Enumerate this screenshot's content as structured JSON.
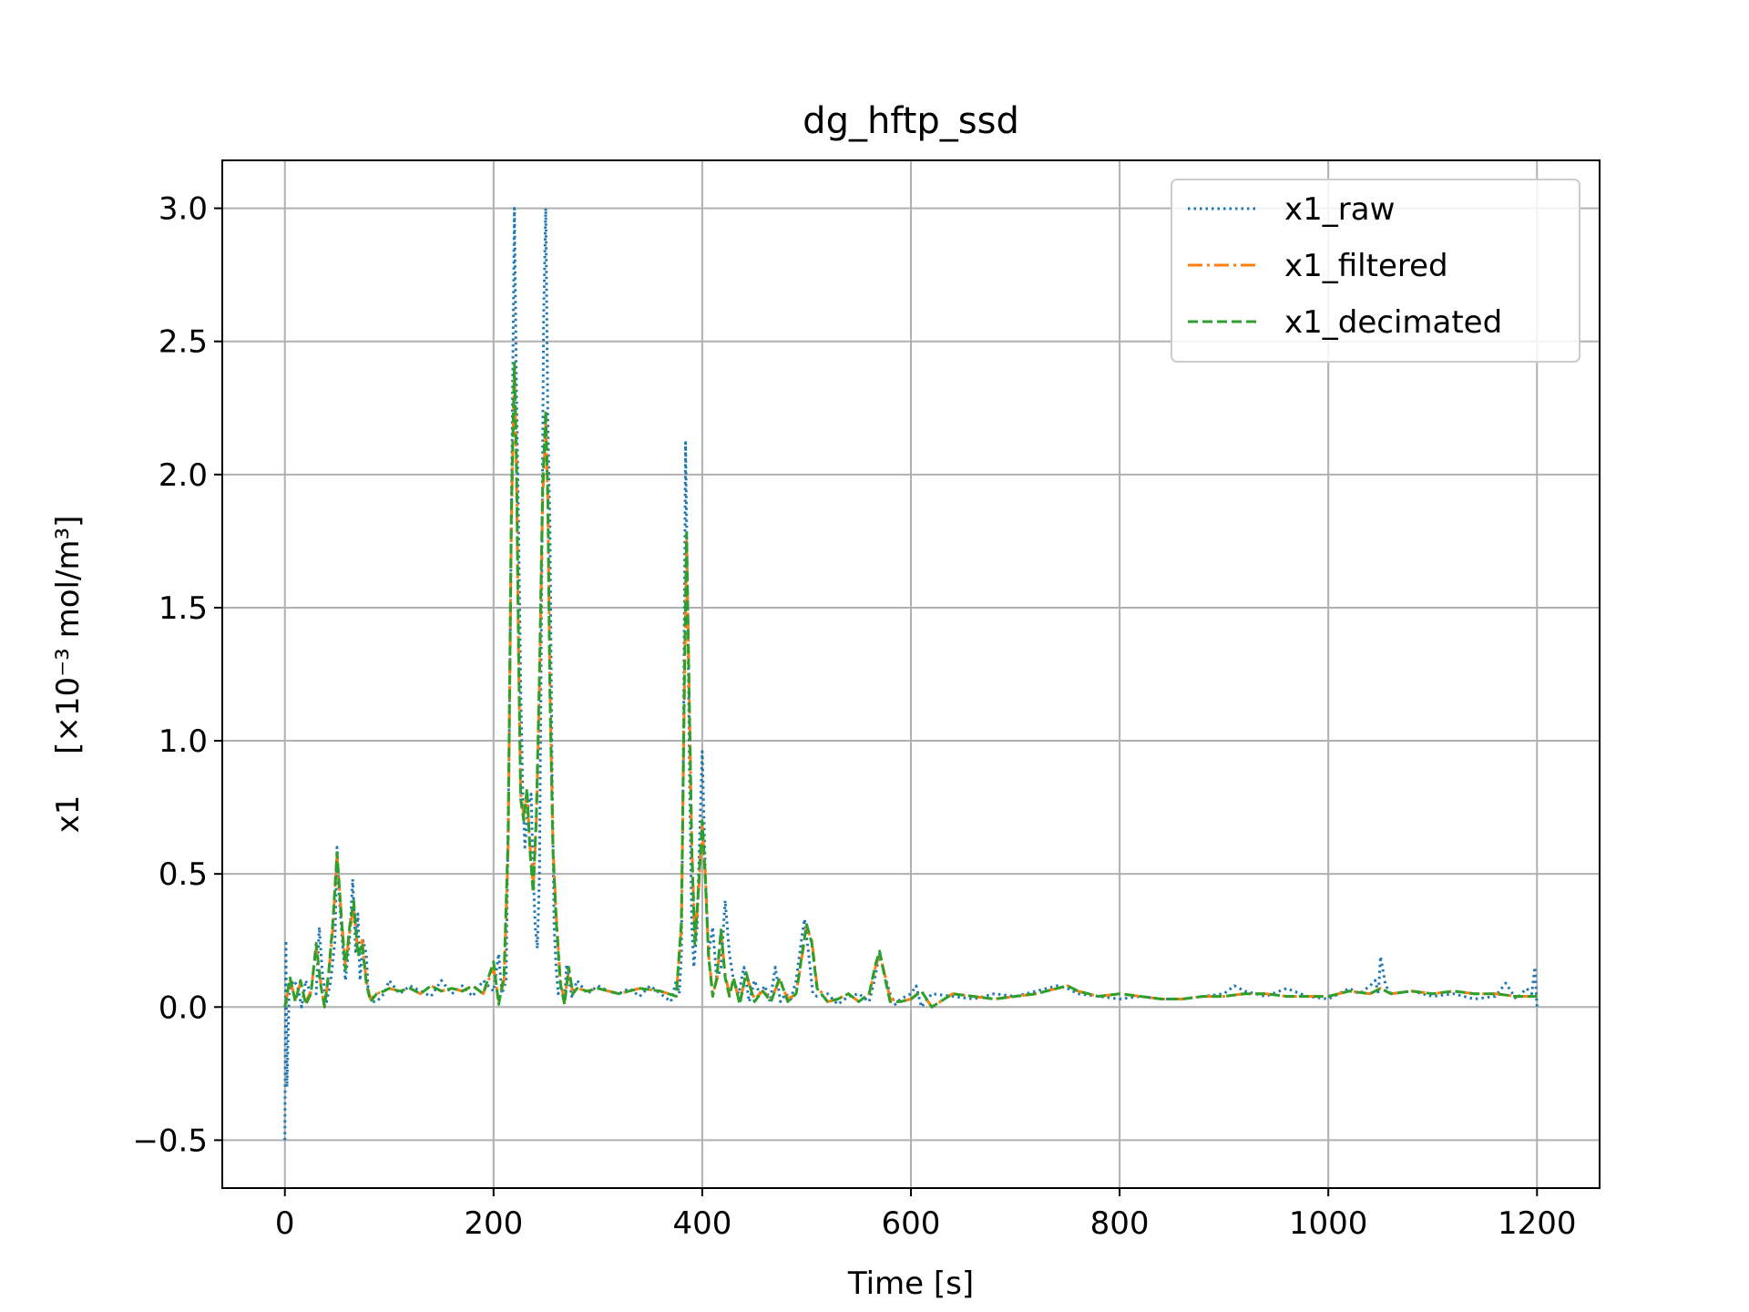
{
  "chart_data": {
    "type": "line",
    "title": "dg_hftp_ssd",
    "xlabel": "Time [s]",
    "ylabel": "x1",
    "ylabel_units": "[×10⁻³ mol/m³]",
    "xlim": [
      -60,
      1260
    ],
    "ylim": [
      -0.68,
      3.18
    ],
    "xticks": [
      0,
      200,
      400,
      600,
      800,
      1000,
      1200
    ],
    "yticks": [
      -0.5,
      0.0,
      0.5,
      1.0,
      1.5,
      2.0,
      2.5,
      3.0
    ],
    "xtick_labels": [
      "0",
      "200",
      "400",
      "600",
      "800",
      "1000",
      "1200"
    ],
    "ytick_labels": [
      "−0.5",
      "0.0",
      "0.5",
      "1.0",
      "1.5",
      "2.0",
      "2.5",
      "3.0"
    ],
    "grid": true,
    "legend_position": "top-right",
    "series": [
      {
        "name": "x1_raw",
        "color": "#1f77b4",
        "style": "dotted",
        "x": [
          0,
          1,
          2,
          4,
          8,
          12,
          16,
          20,
          25,
          30,
          33,
          36,
          40,
          44,
          48,
          50,
          52,
          55,
          58,
          62,
          65,
          68,
          70,
          72,
          75,
          78,
          80,
          84,
          88,
          95,
          100,
          110,
          120,
          130,
          140,
          150,
          160,
          170,
          180,
          190,
          200,
          205,
          208,
          212,
          215,
          218,
          220,
          222,
          224,
          226,
          228,
          230,
          233,
          236,
          238,
          240,
          242,
          244,
          246,
          248,
          250,
          252,
          254,
          256,
          258,
          260,
          262,
          265,
          268,
          270,
          275,
          280,
          290,
          300,
          310,
          320,
          330,
          340,
          350,
          360,
          370,
          375,
          378,
          380,
          382,
          384,
          386,
          388,
          390,
          392,
          395,
          398,
          400,
          403,
          406,
          410,
          414,
          418,
          422,
          426,
          430,
          435,
          440,
          445,
          450,
          455,
          460,
          465,
          470,
          475,
          480,
          485,
          490,
          495,
          498,
          502,
          506,
          510,
          520,
          530,
          540,
          550,
          560,
          565,
          570,
          575,
          580,
          585,
          590,
          600,
          605,
          610,
          620,
          640,
          660,
          680,
          700,
          720,
          740,
          750,
          760,
          780,
          800,
          820,
          840,
          860,
          880,
          900,
          910,
          920,
          940,
          960,
          980,
          1000,
          1010,
          1020,
          1030,
          1040,
          1045,
          1048,
          1050,
          1055,
          1060,
          1080,
          1100,
          1120,
          1140,
          1160,
          1170,
          1180,
          1190,
          1195,
          1198,
          1200
        ],
        "y": [
          -0.5,
          0.25,
          -0.3,
          0.05,
          0.1,
          0.08,
          0.0,
          0.1,
          0.05,
          0.05,
          0.3,
          0.12,
          0.02,
          0.1,
          0.25,
          0.6,
          0.42,
          0.25,
          0.1,
          0.25,
          0.48,
          0.2,
          0.35,
          0.1,
          0.25,
          0.2,
          0.05,
          0.02,
          0.02,
          0.05,
          0.1,
          0.05,
          0.08,
          0.06,
          0.04,
          0.1,
          0.05,
          0.08,
          0.04,
          0.1,
          0.06,
          0.2,
          0.05,
          0.1,
          1.0,
          2.2,
          3.0,
          2.3,
          1.8,
          1.2,
          0.8,
          0.6,
          0.75,
          0.8,
          0.5,
          0.3,
          0.22,
          0.5,
          1.5,
          2.6,
          3.0,
          2.2,
          1.8,
          0.9,
          0.3,
          0.15,
          0.05,
          0.08,
          0.02,
          0.16,
          0.04,
          0.1,
          0.05,
          0.08,
          0.06,
          0.05,
          0.07,
          0.04,
          0.08,
          0.05,
          0.02,
          0.1,
          0.05,
          0.2,
          1.0,
          2.12,
          1.5,
          0.8,
          0.3,
          0.15,
          0.3,
          0.7,
          0.96,
          0.5,
          0.2,
          0.3,
          0.1,
          0.15,
          0.4,
          0.2,
          0.1,
          0.05,
          0.15,
          0.02,
          0.1,
          0.05,
          0.08,
          0.02,
          0.15,
          0.02,
          0.05,
          0.03,
          0.1,
          0.25,
          0.33,
          0.2,
          0.05,
          0.04,
          0.05,
          0.01,
          0.04,
          0.05,
          0.02,
          0.1,
          0.2,
          0.12,
          0.05,
          0.01,
          0.03,
          0.05,
          0.08,
          0.0,
          0.05,
          0.04,
          0.03,
          0.05,
          0.04,
          0.06,
          0.08,
          0.07,
          0.05,
          0.04,
          0.03,
          0.04,
          0.03,
          0.03,
          0.04,
          0.05,
          0.08,
          0.06,
          0.04,
          0.07,
          0.04,
          0.03,
          0.05,
          0.07,
          0.05,
          0.08,
          0.1,
          0.05,
          0.19,
          0.08,
          0.05,
          0.06,
          0.04,
          0.05,
          0.03,
          0.04,
          0.09,
          0.03,
          0.07,
          0.05,
          0.15,
          0.0
        ]
      },
      {
        "name": "x1_filtered",
        "color": "#ff7f0e",
        "style": "dashdot",
        "x": [
          0,
          5,
          10,
          15,
          20,
          25,
          30,
          34,
          38,
          42,
          46,
          50,
          54,
          58,
          62,
          66,
          70,
          74,
          78,
          82,
          88,
          95,
          100,
          110,
          120,
          130,
          140,
          150,
          160,
          170,
          180,
          190,
          200,
          205,
          210,
          214,
          217,
          220,
          222,
          224,
          226,
          229,
          232,
          235,
          238,
          241,
          244,
          247,
          250,
          252,
          254,
          257,
          260,
          264,
          268,
          272,
          276,
          280,
          290,
          300,
          320,
          340,
          360,
          375,
          380,
          383,
          385,
          387,
          390,
          393,
          396,
          400,
          403,
          406,
          410,
          414,
          418,
          422,
          426,
          430,
          436,
          442,
          450,
          458,
          466,
          474,
          482,
          490,
          496,
          500,
          505,
          510,
          520,
          530,
          540,
          550,
          560,
          566,
          570,
          575,
          580,
          590,
          600,
          610,
          620,
          640,
          660,
          680,
          700,
          720,
          740,
          750,
          760,
          780,
          800,
          820,
          840,
          860,
          880,
          900,
          920,
          940,
          960,
          980,
          1000,
          1020,
          1040,
          1050,
          1060,
          1080,
          1100,
          1120,
          1140,
          1160,
          1180,
          1200
        ],
        "y": [
          0.0,
          0.1,
          0.03,
          0.09,
          0.02,
          0.06,
          0.22,
          0.1,
          0.0,
          0.12,
          0.3,
          0.57,
          0.35,
          0.15,
          0.28,
          0.38,
          0.2,
          0.25,
          0.1,
          0.03,
          0.05,
          0.06,
          0.07,
          0.06,
          0.07,
          0.05,
          0.08,
          0.06,
          0.07,
          0.06,
          0.08,
          0.05,
          0.15,
          0.02,
          0.1,
          0.6,
          1.8,
          2.4,
          2.0,
          1.3,
          0.8,
          0.72,
          0.8,
          0.6,
          0.45,
          0.7,
          1.2,
          1.9,
          2.2,
          1.9,
          1.2,
          0.6,
          0.35,
          0.1,
          0.02,
          0.14,
          0.05,
          0.07,
          0.06,
          0.07,
          0.05,
          0.07,
          0.06,
          0.04,
          0.3,
          1.2,
          1.75,
          1.3,
          0.6,
          0.25,
          0.4,
          0.68,
          0.5,
          0.2,
          0.05,
          0.1,
          0.28,
          0.12,
          0.05,
          0.1,
          0.02,
          0.12,
          0.03,
          0.06,
          0.03,
          0.1,
          0.03,
          0.05,
          0.2,
          0.3,
          0.25,
          0.08,
          0.02,
          0.03,
          0.05,
          0.02,
          0.05,
          0.15,
          0.2,
          0.12,
          0.03,
          0.02,
          0.03,
          0.06,
          0.0,
          0.05,
          0.04,
          0.03,
          0.04,
          0.05,
          0.07,
          0.08,
          0.06,
          0.04,
          0.05,
          0.04,
          0.03,
          0.03,
          0.04,
          0.04,
          0.05,
          0.05,
          0.04,
          0.04,
          0.04,
          0.06,
          0.05,
          0.07,
          0.05,
          0.06,
          0.05,
          0.06,
          0.05,
          0.05,
          0.04,
          0.04
        ]
      },
      {
        "name": "x1_decimated",
        "color": "#2ca02c",
        "style": "dashed",
        "x": [
          0,
          5,
          10,
          15,
          20,
          25,
          30,
          34,
          38,
          42,
          46,
          50,
          54,
          58,
          62,
          66,
          70,
          74,
          78,
          82,
          88,
          95,
          100,
          110,
          120,
          130,
          140,
          150,
          160,
          170,
          180,
          190,
          200,
          205,
          210,
          214,
          217,
          220,
          222,
          224,
          226,
          229,
          232,
          235,
          238,
          241,
          244,
          247,
          250,
          252,
          254,
          257,
          260,
          264,
          268,
          272,
          276,
          280,
          290,
          300,
          320,
          340,
          360,
          375,
          380,
          383,
          385,
          387,
          390,
          393,
          396,
          400,
          403,
          406,
          410,
          414,
          418,
          422,
          426,
          430,
          436,
          442,
          450,
          458,
          466,
          474,
          482,
          490,
          496,
          500,
          505,
          510,
          520,
          530,
          540,
          550,
          560,
          566,
          570,
          575,
          580,
          590,
          600,
          610,
          620,
          640,
          660,
          680,
          700,
          720,
          740,
          750,
          760,
          780,
          800,
          820,
          840,
          860,
          880,
          900,
          920,
          940,
          960,
          980,
          1000,
          1020,
          1040,
          1050,
          1060,
          1080,
          1100,
          1120,
          1140,
          1160,
          1180,
          1200
        ],
        "y": [
          0.0,
          0.11,
          0.02,
          0.1,
          0.01,
          0.05,
          0.24,
          0.09,
          0.0,
          0.13,
          0.32,
          0.58,
          0.34,
          0.14,
          0.3,
          0.4,
          0.19,
          0.24,
          0.09,
          0.02,
          0.05,
          0.06,
          0.07,
          0.06,
          0.07,
          0.05,
          0.08,
          0.06,
          0.07,
          0.06,
          0.08,
          0.05,
          0.17,
          0.01,
          0.12,
          0.65,
          1.85,
          2.42,
          2.05,
          1.35,
          0.78,
          0.7,
          0.82,
          0.58,
          0.43,
          0.72,
          1.25,
          1.95,
          2.24,
          1.92,
          1.18,
          0.58,
          0.33,
          0.09,
          0.01,
          0.15,
          0.05,
          0.07,
          0.06,
          0.07,
          0.05,
          0.07,
          0.06,
          0.04,
          0.32,
          1.25,
          1.78,
          1.28,
          0.58,
          0.23,
          0.42,
          0.7,
          0.48,
          0.19,
          0.04,
          0.11,
          0.29,
          0.11,
          0.04,
          0.11,
          0.01,
          0.13,
          0.02,
          0.06,
          0.02,
          0.11,
          0.02,
          0.05,
          0.21,
          0.31,
          0.24,
          0.07,
          0.02,
          0.03,
          0.05,
          0.02,
          0.05,
          0.16,
          0.21,
          0.11,
          0.02,
          0.02,
          0.03,
          0.06,
          0.0,
          0.05,
          0.04,
          0.03,
          0.04,
          0.05,
          0.07,
          0.08,
          0.06,
          0.04,
          0.05,
          0.04,
          0.03,
          0.03,
          0.04,
          0.04,
          0.05,
          0.05,
          0.04,
          0.04,
          0.04,
          0.06,
          0.05,
          0.07,
          0.05,
          0.06,
          0.05,
          0.06,
          0.05,
          0.05,
          0.04,
          0.04
        ]
      }
    ]
  }
}
